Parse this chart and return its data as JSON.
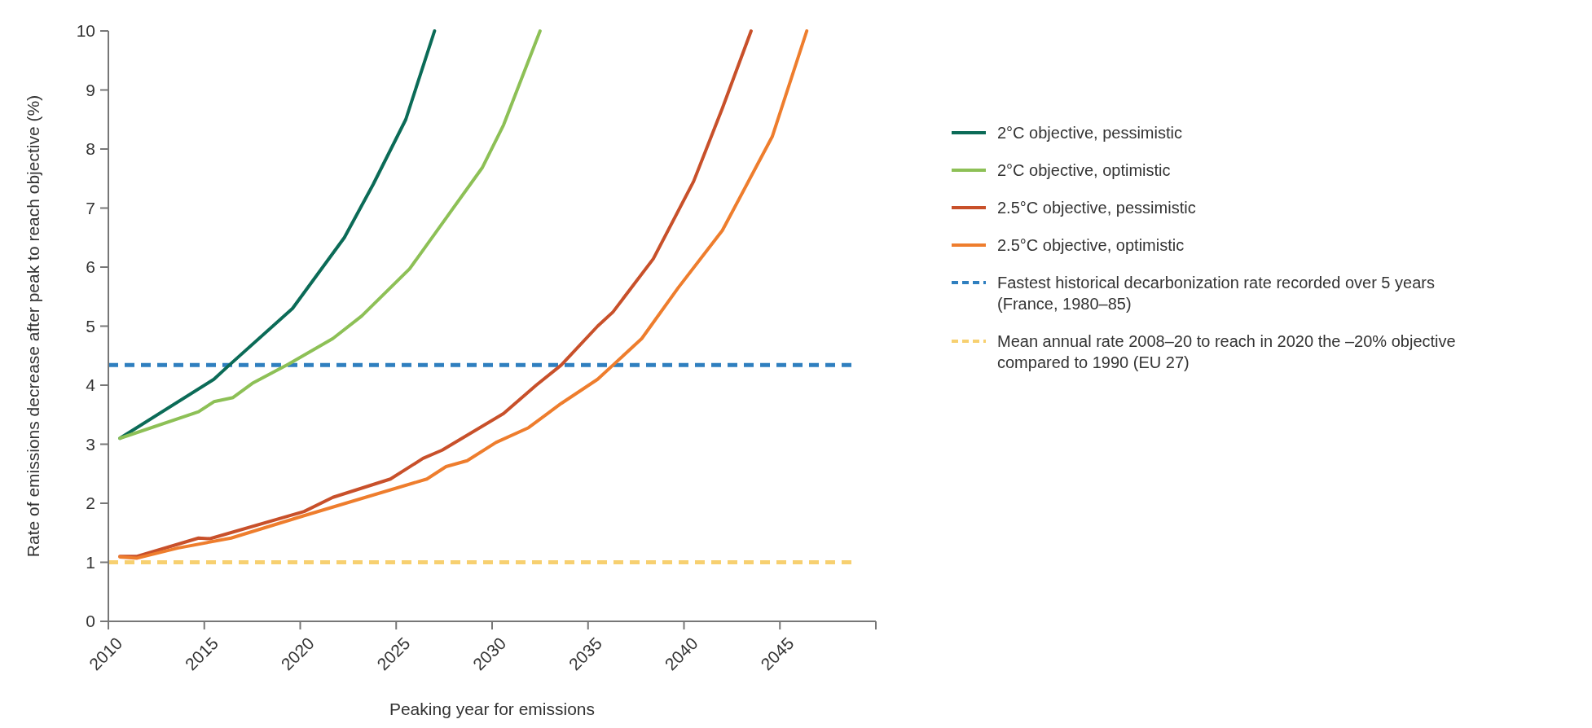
{
  "chart_data": {
    "type": "line",
    "xlabel": "Peaking year for emissions",
    "ylabel": "Rate of emissions decrease after peak to reach objective (%)",
    "xlim": [
      2010,
      2050
    ],
    "xticks": [
      2010,
      2015,
      2020,
      2025,
      2030,
      2035,
      2040,
      2045,
      {
        "value": 2050,
        "label": null
      }
    ],
    "ylim": [
      0,
      10
    ],
    "yticks": [
      0,
      1,
      2,
      3,
      4,
      5,
      6,
      7,
      8,
      9,
      10
    ],
    "grid": false,
    "legend": "right",
    "marker": "none",
    "line_style": "solid",
    "series": [
      {
        "name": "2°C objective, pessimistic",
        "color": "#0b6b57",
        "x": [
          2010.6,
          2015.5,
          2016.3,
          2019.6,
          2022.3,
          2023.8,
          2025.5,
          2027.0
        ],
        "values": [
          3.1,
          4.1,
          4.34,
          5.3,
          6.5,
          7.4,
          8.5,
          10
        ]
      },
      {
        "name": "2°C objective, optimistic",
        "color": "#8dc056",
        "x": [
          2010.6,
          2014.7,
          2015.5,
          2016.5,
          2017.5,
          2019.4,
          2021.7,
          2023.2,
          2025.7,
          2027.6,
          2029.5,
          2030.6,
          2032.5
        ],
        "values": [
          3.1,
          3.55,
          3.72,
          3.79,
          4.03,
          4.36,
          4.79,
          5.17,
          5.97,
          6.83,
          7.69,
          8.41,
          10
        ]
      },
      {
        "name": "2.5°C objective, pessimistic",
        "color": "#c8502a",
        "x": [
          2010.6,
          2011.5,
          2014.7,
          2015.3,
          2020.2,
          2021.7,
          2024.7,
          2026.4,
          2027.4,
          2030.6,
          2032.3,
          2033.6,
          2035.5,
          2036.3,
          2038.4,
          2040.5,
          2042.0,
          2043.5
        ],
        "values": [
          1.1,
          1.1,
          1.41,
          1.4,
          1.86,
          2.1,
          2.41,
          2.76,
          2.9,
          3.52,
          4.0,
          4.34,
          5.0,
          5.24,
          6.14,
          7.45,
          8.69,
          10
        ]
      },
      {
        "name": "2.5°C objective, optimistic",
        "color": "#ee7d2d",
        "x": [
          2010.6,
          2011.5,
          2013.6,
          2016.4,
          2020.2,
          2026.6,
          2027.6,
          2028.7,
          2030.2,
          2031.9,
          2033.6,
          2035.5,
          2036.3,
          2037.8,
          2039.7,
          2042.0,
          2044.6,
          2046.4
        ],
        "values": [
          1.09,
          1.07,
          1.24,
          1.41,
          1.79,
          2.41,
          2.62,
          2.72,
          3.03,
          3.28,
          3.69,
          4.1,
          4.34,
          4.79,
          5.65,
          6.62,
          8.21,
          10
        ]
      }
    ],
    "ref_lines": [
      {
        "axis": "y",
        "value": 4.34,
        "label": "Fastest historical decarbonization rate recorded over 5 years (France, 1980–85)",
        "color": "#2f7fbf",
        "line_style": "dashed"
      },
      {
        "axis": "y",
        "value": 1.0,
        "label": "Mean annual rate 2008–20 to reach in 2020 the –20% objective compared to 1990 (EU 27)",
        "color": "#f7d070",
        "line_style": "dashed"
      }
    ]
  }
}
